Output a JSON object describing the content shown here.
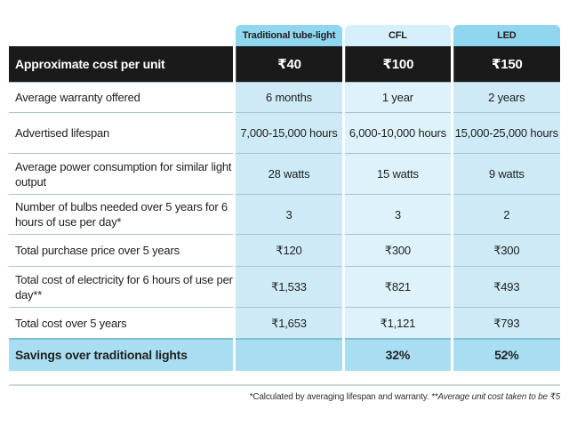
{
  "header": {
    "columns": [
      "Traditional tube-light",
      "CFL",
      "LED"
    ]
  },
  "cost_row": {
    "label": "Approximate cost per unit",
    "values": [
      "₹40",
      "₹100",
      "₹150"
    ]
  },
  "rows": [
    {
      "label": "Average warranty offered",
      "values": [
        "6 months",
        "1 year",
        "2 years"
      ]
    },
    {
      "label": "Advertised lifespan",
      "values": [
        "7,000-15,000 hours",
        "6,000-10,000 hours",
        "15,000-25,000 hours"
      ]
    },
    {
      "label": "Average power consumption for similar light output",
      "values": [
        "28 watts",
        "15 watts",
        "9 watts"
      ]
    },
    {
      "label": "Number of bulbs needed over 5 years for 6 hours of use per day*",
      "values": [
        "3",
        "3",
        "2"
      ]
    },
    {
      "label": "Total purchase price over 5 years",
      "values": [
        "₹120",
        "₹300",
        "₹300"
      ]
    },
    {
      "label": "Total cost of electricity for 6 hours of use per day**",
      "values": [
        "₹1,533",
        "₹821",
        "₹493"
      ]
    },
    {
      "label": "Total cost over 5 years",
      "values": [
        "₹1,653",
        "₹1,121",
        "₹793"
      ]
    }
  ],
  "savings_row": {
    "label": "Savings over traditional lights",
    "values": [
      "",
      "32%",
      "52%"
    ]
  },
  "footnote": {
    "first": "*Calculated by averaging lifespan and warranty.",
    "second": "**Average unit cost taken to be ₹5"
  }
}
